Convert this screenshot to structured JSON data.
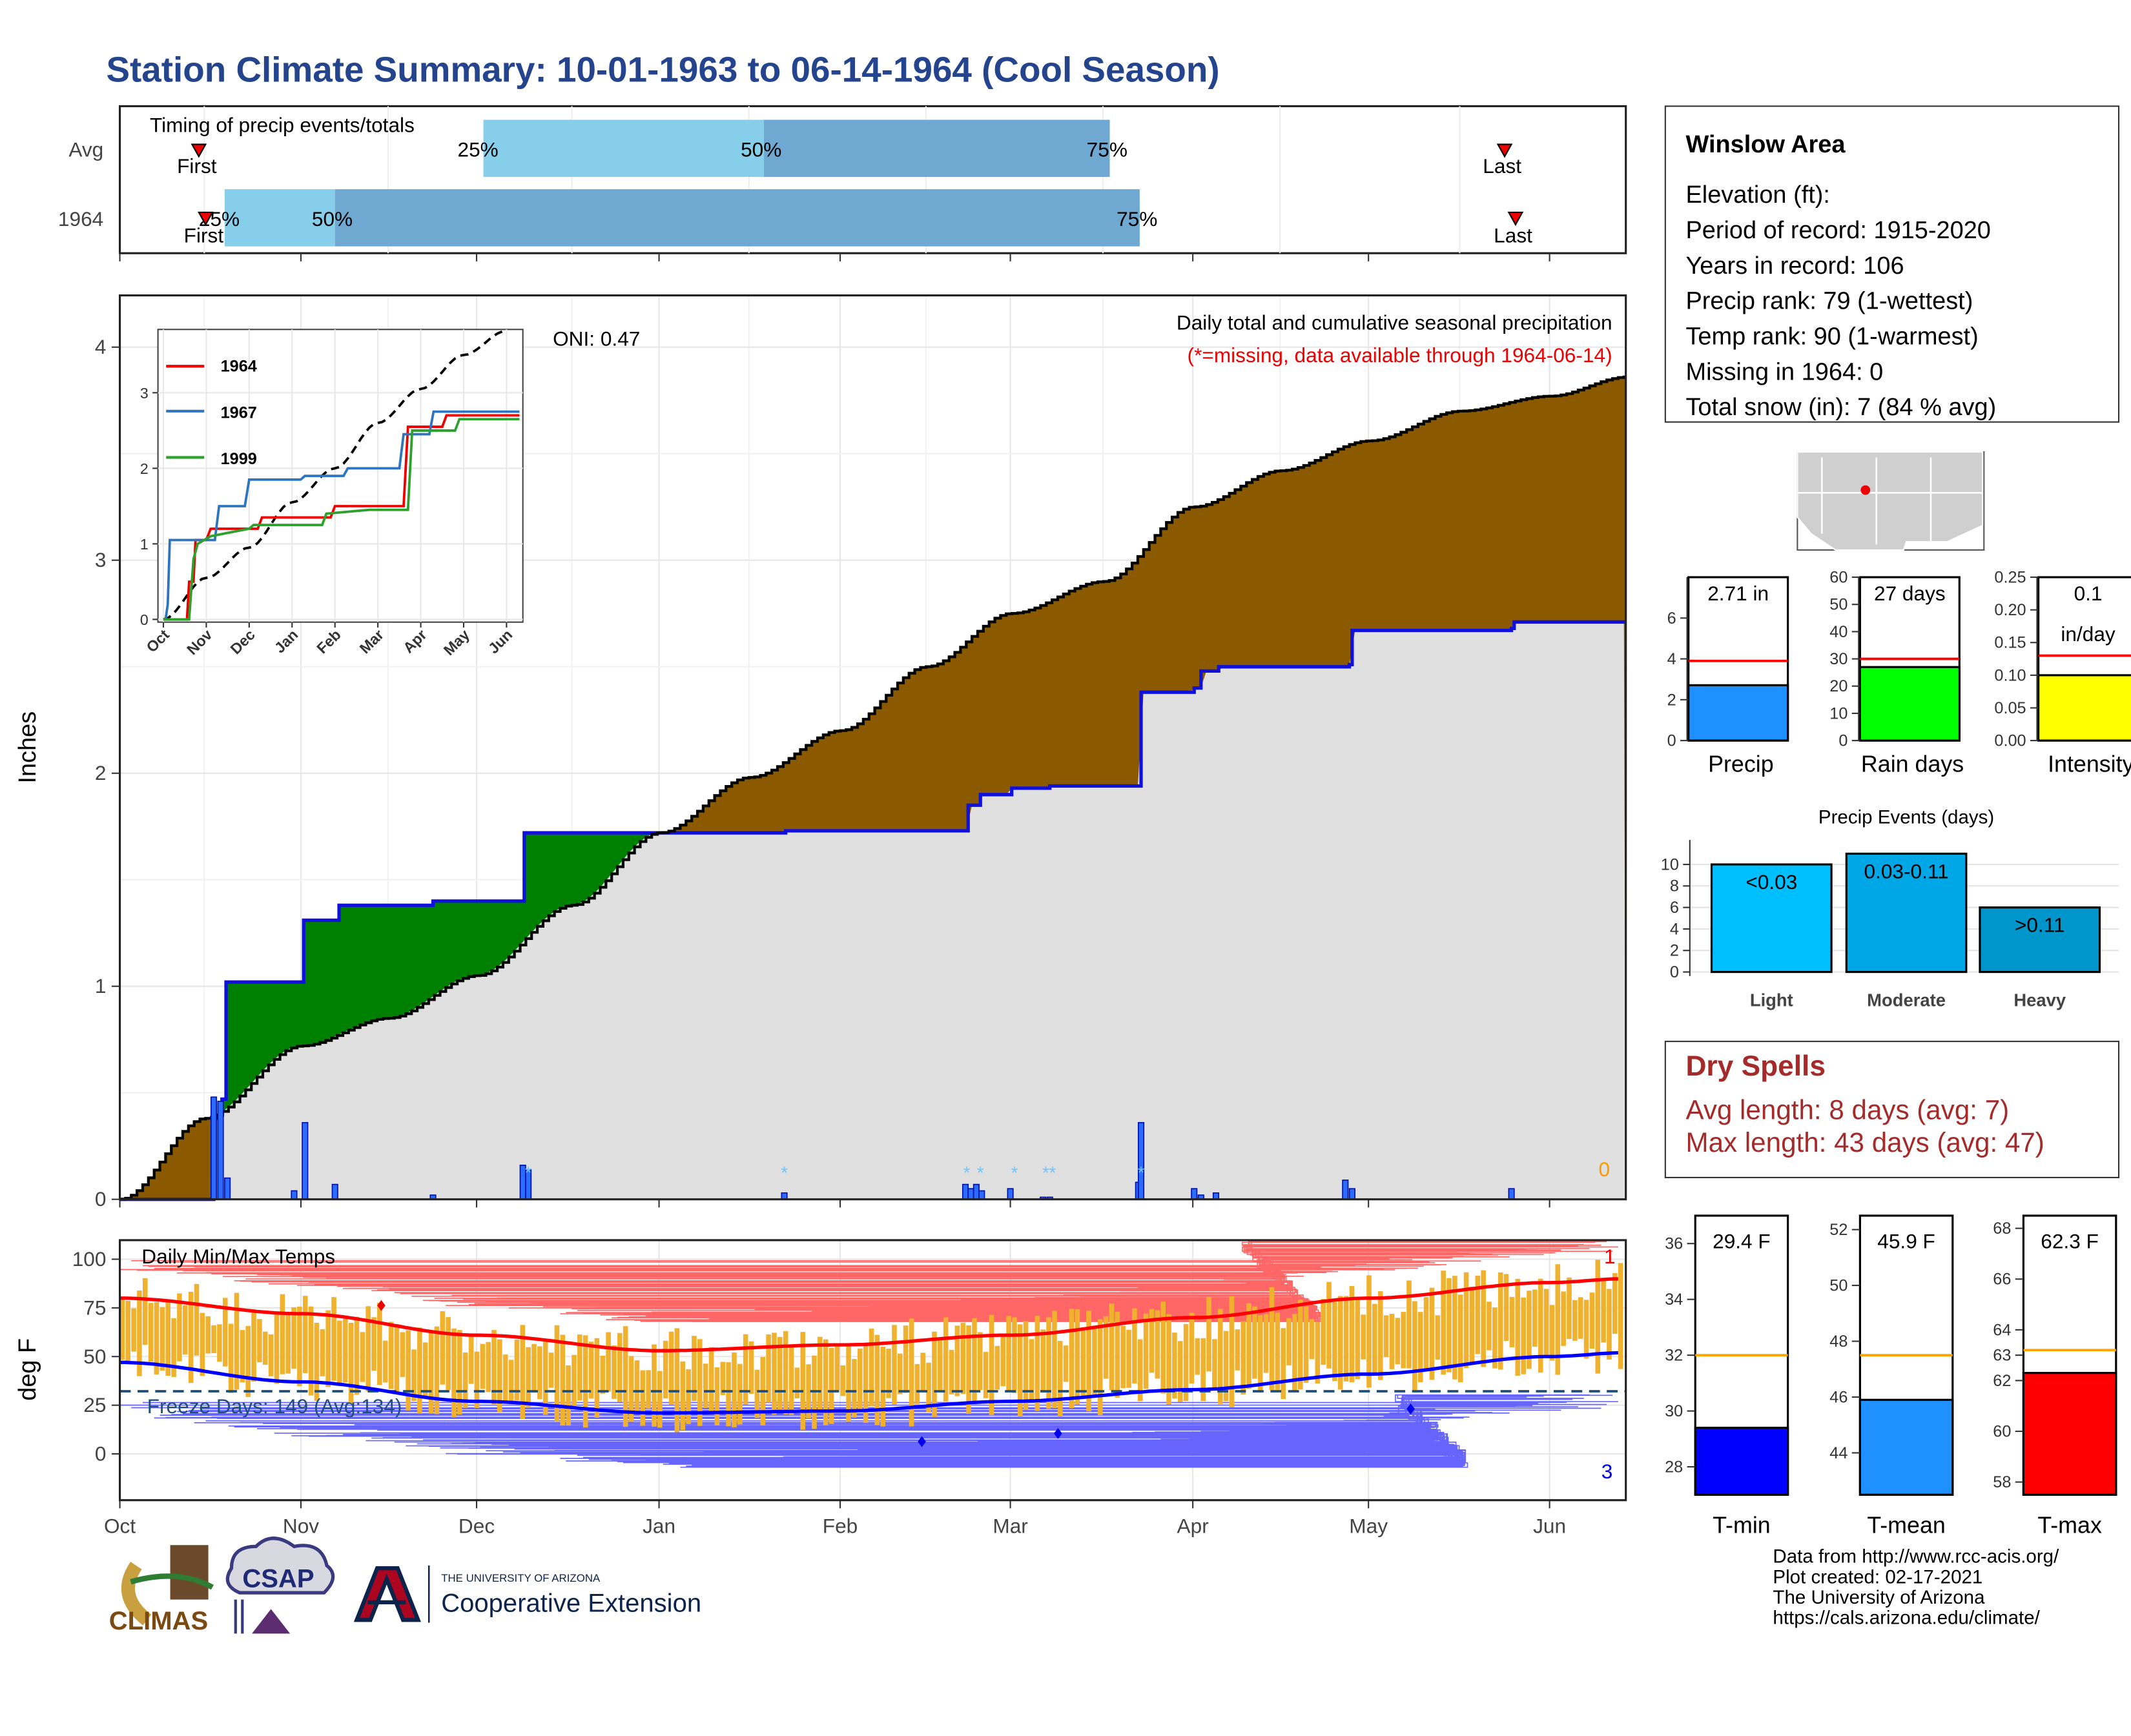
{
  "title": "Station Climate Summary: 10-01-1963 to 06-14-1964 (Cool Season)",
  "colors": {
    "title": "#24448E",
    "cum_current": "#8B5A00",
    "cum_deficit": "#008000",
    "avg_fill": "#E0E0E0",
    "avg_line": "#1010DD",
    "daily_bars": "#2C6BFF",
    "temp_band": "#F0B12E",
    "tmax_avg": "#FF0000",
    "tmin_avg": "#0000FF",
    "dry_spells": "#A52A2A"
  },
  "timing": {
    "title": "Timing of precip events/totals",
    "rows": [
      "Avg",
      "1964"
    ],
    "avg_labels": {
      "first": "First",
      "last": "Last",
      "p25": "25%",
      "p50": "50%",
      "p75": "75%"
    },
    "y1964_labels": {
      "first": "First",
      "last": "Last",
      "p25": "25%",
      "p50": "50%",
      "p75": "75%"
    }
  },
  "station": {
    "name": "Winslow Area",
    "lines": [
      "Elevation (ft):",
      "Period of record: 1915-2020",
      "Years in record: 106",
      "Precip rank: 79 (1-wettest)",
      "Temp rank: 90 (1-warmest)",
      "Missing in 1964: 0",
      "Total snow (in): 7 (84 % avg)"
    ]
  },
  "main_plot": {
    "label_top": "Daily total and cumulative seasonal precipitation",
    "label_missing": "(*=missing, data available through 1964-06-14)",
    "oni": "ONI: 0.47",
    "ylabel": "Inches",
    "yticks": [
      "0",
      "1",
      "2",
      "3",
      "4"
    ],
    "zero_label": "0"
  },
  "inset": {
    "legend": [
      "1964",
      "1967",
      "1999"
    ],
    "xticks": [
      "Oct",
      "Nov",
      "Dec",
      "Jan",
      "Feb",
      "Mar",
      "Apr",
      "May",
      "Jun"
    ],
    "yticks": [
      "0",
      "1",
      "2",
      "3"
    ]
  },
  "months": [
    "Oct",
    "Nov",
    "Dec",
    "Jan",
    "Feb",
    "Mar",
    "Apr",
    "May",
    "Jun"
  ],
  "temps": {
    "label": "Daily Min/Max Temps",
    "ylabel": "deg F",
    "yticks": [
      "0",
      "25",
      "50",
      "75",
      "100"
    ],
    "freeze": "Freeze Days: 149 (Avg:134)",
    "count_hi": "1",
    "count_lo": "3"
  },
  "mini_bars": [
    {
      "label": "Precip",
      "value_text": "2.71 in",
      "value": 2.71,
      "avg": 3.9,
      "ymax": 8,
      "yticks": [
        "0",
        "2",
        "4",
        "6"
      ],
      "color": "#1E90FF"
    },
    {
      "label": "Rain days",
      "value_text": "27 days",
      "value": 27,
      "avg": 30,
      "ymax": 60,
      "yticks": [
        "0",
        "10",
        "20",
        "30",
        "40",
        "50",
        "60"
      ],
      "color": "#00FF00"
    },
    {
      "label": "Intensity",
      "value_text": "0.1",
      "value_text2": "in/day",
      "value": 0.1,
      "avg": 0.13,
      "ymax": 0.25,
      "yticks": [
        "0.00",
        "0.05",
        "0.10",
        "0.15",
        "0.20",
        "0.25"
      ],
      "color": "#FFFF00"
    }
  ],
  "events": {
    "title": "Precip Events (days)",
    "yticks": [
      "0",
      "2",
      "4",
      "6",
      "8",
      "10"
    ],
    "bars": [
      {
        "label": "Light",
        "tag": "<0.03",
        "value": 10,
        "color": "#00BFFF"
      },
      {
        "label": "Moderate",
        "tag": "0.03-0.11",
        "value": 11,
        "color": "#00A7E6"
      },
      {
        "label": "Heavy",
        "tag": ">0.11",
        "value": 6,
        "color": "#0096CC"
      }
    ]
  },
  "dry_spells": {
    "title": "Dry Spells",
    "avg": "Avg length: 8 days (avg: 7)",
    "max": "Max length: 43 days (avg: 47)"
  },
  "temp_bars": [
    {
      "label": "T-min",
      "value_text": "29.4 F",
      "value": 29.4,
      "avg": 32,
      "ymin": 27,
      "ymax": 37,
      "yticks": [
        "28",
        "30",
        "32",
        "34",
        "36"
      ],
      "color": "#0000FF"
    },
    {
      "label": "T-mean",
      "value_text": "45.9 F",
      "value": 45.9,
      "avg": 47.5,
      "ymin": 42.5,
      "ymax": 52.5,
      "yticks": [
        "44",
        "46",
        "48",
        "50",
        "52"
      ],
      "color": "#1E90FF"
    },
    {
      "label": "T-max",
      "value_text": "62.3 F",
      "value": 62.3,
      "avg": 63.2,
      "ymin": 57.5,
      "ymax": 68.5,
      "yticks": [
        "58",
        "60",
        "62",
        "63",
        "64",
        "66",
        "68"
      ],
      "color": "#FF0000"
    }
  ],
  "credits": [
    "Data from http://www.rcc-acis.org/",
    "Plot created: 02-17-2021",
    "The University of Arizona",
    "https://cals.arizona.edu/climate/"
  ],
  "logos": {
    "climas": "CLIMAS",
    "csap": "CSAP",
    "ua_small": "THE UNIVERSITY OF ARIZONA",
    "ua_big": "Cooperative Extension"
  },
  "chart_data": [
    {
      "type": "area",
      "title": "Daily total and cumulative seasonal precipitation",
      "ylabel": "Inches",
      "ylim": [
        0,
        4.2
      ],
      "series": [
        {
          "name": "1964",
          "x": [
            "1963-10-01",
            "1963-10-15",
            "1963-10-18",
            "1963-11-01",
            "1963-12-01",
            "1963-12-10",
            "1964-01-01",
            "1964-02-01",
            "1964-03-01",
            "1964-03-23",
            "1964-04-01",
            "1964-04-26",
            "1964-05-01",
            "1964-06-14"
          ],
          "values": [
            0,
            0.38,
            0.47,
            0.5,
            1.4,
            1.72,
            1.72,
            1.73,
            1.9,
            2.38,
            2.5,
            2.67,
            2.68,
            2.71
          ]
        },
        {
          "name": "Avg",
          "x": [
            "1963-10-01",
            "1963-11-01",
            "1963-12-01",
            "1964-01-01",
            "1964-02-01",
            "1964-03-01",
            "1964-04-01",
            "1964-05-01",
            "1964-06-14"
          ],
          "values": [
            0,
            0.7,
            1.05,
            1.6,
            2.2,
            2.7,
            3.25,
            3.6,
            3.85
          ]
        }
      ]
    },
    {
      "type": "line",
      "title": "",
      "x": [
        "Oct",
        "Nov",
        "Dec",
        "Jan",
        "Feb",
        "Mar",
        "Apr",
        "May",
        "Jun"
      ],
      "series": [
        {
          "name": "1964",
          "values": [
            0,
            1.2,
            1.3,
            1.35,
            1.5,
            1.5,
            2.55,
            2.7,
            2.7
          ]
        },
        {
          "name": "1967",
          "values": [
            0,
            1.5,
            1.85,
            1.9,
            1.92,
            2.0,
            2.45,
            2.75,
            2.75
          ]
        },
        {
          "name": "1999",
          "values": [
            0,
            1.1,
            1.2,
            1.25,
            1.4,
            1.45,
            2.5,
            2.65,
            2.65
          ]
        }
      ]
    },
    {
      "type": "line",
      "title": "Daily Min/Max Temps",
      "ylabel": "deg F",
      "ylim": [
        -15,
        110
      ],
      "x": [
        "Oct",
        "Nov",
        "Dec",
        "Jan",
        "Feb",
        "Mar",
        "Apr",
        "May",
        "Jun"
      ],
      "series": [
        {
          "name": "Avg max",
          "values": [
            80,
            72,
            61,
            53,
            56,
            61,
            70,
            80,
            89
          ]
        },
        {
          "name": "Avg min",
          "values": [
            46,
            37,
            27,
            21,
            22,
            27,
            33,
            41,
            51
          ]
        }
      ]
    },
    {
      "type": "bar",
      "title": "Precip Events (days)",
      "categories": [
        "Light",
        "Moderate",
        "Heavy"
      ],
      "values": [
        10,
        11,
        6
      ],
      "ylim": [
        0,
        11.5
      ]
    }
  ]
}
